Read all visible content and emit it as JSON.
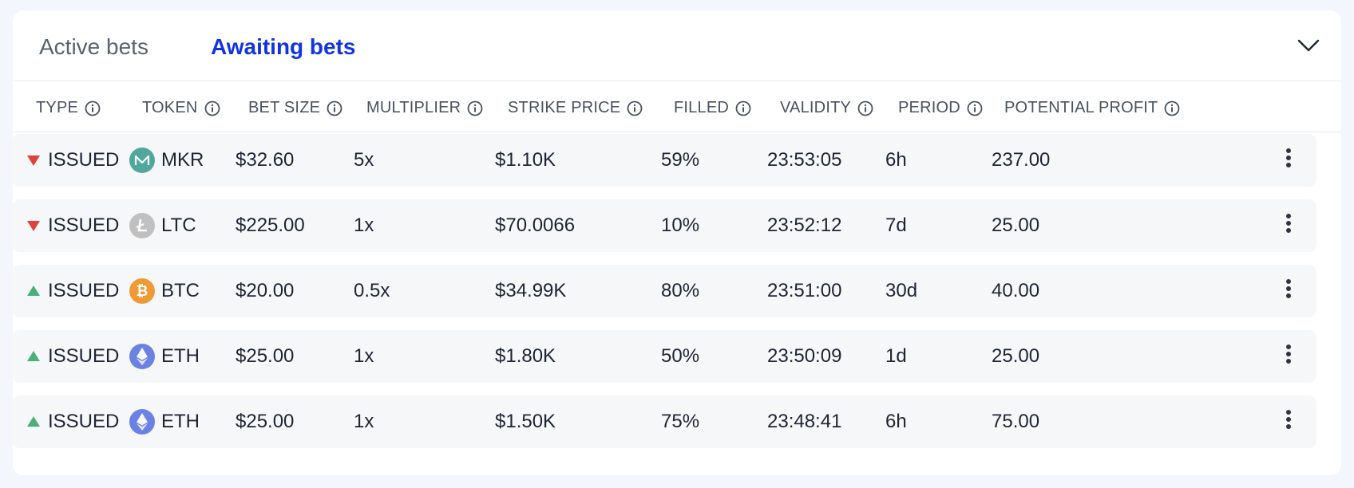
{
  "tabs": {
    "active": "Active bets",
    "awaiting": "Awaiting bets"
  },
  "columns": [
    "TYPE",
    "TOKEN",
    "BET SIZE",
    "MULTIPLIER",
    "STRIKE PRICE",
    "FILLED",
    "VALIDITY",
    "PERIOD",
    "POTENTIAL PROFIT"
  ],
  "rows": [
    {
      "direction": "down",
      "type": "ISSUED",
      "token": "MKR",
      "token_icon": "maker-icon",
      "bet_size": "$32.60",
      "multiplier": "5x",
      "strike_price": "$1.10K",
      "filled": "59%",
      "validity": "23:53:05",
      "period": "6h",
      "potential_profit": "237.00"
    },
    {
      "direction": "down",
      "type": "ISSUED",
      "token": "LTC",
      "token_icon": "litecoin-icon",
      "bet_size": "$225.00",
      "multiplier": "1x",
      "strike_price": "$70.0066",
      "filled": "10%",
      "validity": "23:52:12",
      "period": "7d",
      "potential_profit": "25.00"
    },
    {
      "direction": "up",
      "type": "ISSUED",
      "token": "BTC",
      "token_icon": "bitcoin-icon",
      "bet_size": "$20.00",
      "multiplier": "0.5x",
      "strike_price": "$34.99K",
      "filled": "80%",
      "validity": "23:51:00",
      "period": "30d",
      "potential_profit": "40.00"
    },
    {
      "direction": "up",
      "type": "ISSUED",
      "token": "ETH",
      "token_icon": "ethereum-icon",
      "bet_size": "$25.00",
      "multiplier": "1x",
      "strike_price": "$1.80K",
      "filled": "50%",
      "validity": "23:50:09",
      "period": "1d",
      "potential_profit": "25.00"
    },
    {
      "direction": "up",
      "type": "ISSUED",
      "token": "ETH",
      "token_icon": "ethereum-icon",
      "bet_size": "$25.00",
      "multiplier": "1x",
      "strike_price": "$1.50K",
      "filled": "75%",
      "validity": "23:48:41",
      "period": "6h",
      "potential_profit": "75.00"
    }
  ],
  "colors": {
    "accent": "#1133e6",
    "down": "#e0413a",
    "up": "#4caf7a",
    "mkr": "#4fa89b",
    "ltc": "#c0c0c0",
    "btc": "#f09a35",
    "eth": "#6b82e3"
  }
}
